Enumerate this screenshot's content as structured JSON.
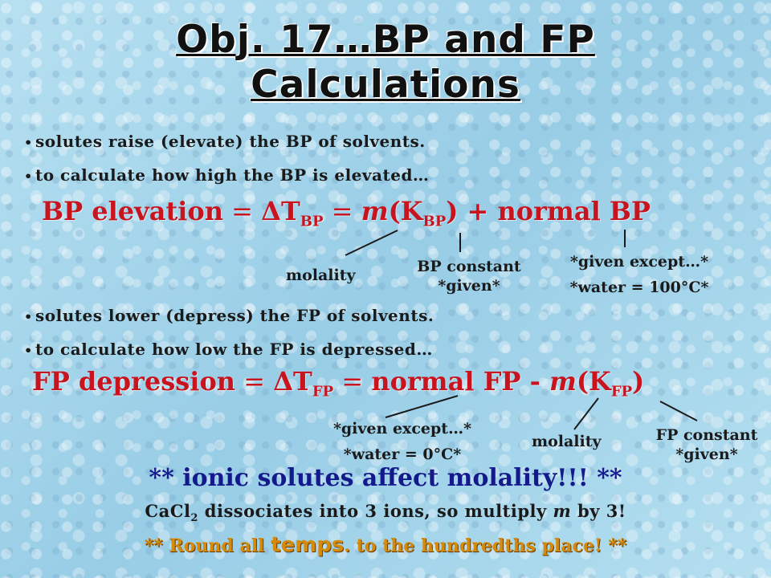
{
  "title": {
    "line1": "Obj. 17…BP and FP",
    "line2": "Calculations"
  },
  "bullets": {
    "b1": "solutes raise (elevate) the BP of solvents.",
    "b2": "to calculate how high the BP is elevated…",
    "b3": "solutes lower (depress) the FP of solvents.",
    "b4": "to calculate how low the FP is depressed…"
  },
  "bp_eq": {
    "label": "BP elevation",
    "eq1": " = ",
    "delta": "ΔT",
    "sub": "BP",
    "eq2": " = ",
    "m": "m",
    "k_open": "(K",
    "k_sub": "BP",
    "k_close": ")",
    "rest": " + normal BP"
  },
  "bp_notes": {
    "molality": "molality",
    "const1": "BP constant",
    "const2": "*given*",
    "given1": "*given except…*",
    "given2": "*water = 100°C*"
  },
  "fp_eq": {
    "label": "FP depression",
    "eq1": " = ",
    "delta": "ΔT",
    "sub": "FP",
    "eq2": " = ",
    "normal": "normal FP - ",
    "m": "m",
    "k_open": "(K",
    "k_sub": "FP",
    "k_close": ")"
  },
  "fp_notes": {
    "given1": "*given except…*",
    "given2": "*water = 0°C*",
    "molality": "molality",
    "const1": "FP constant",
    "const2": "*given*"
  },
  "ionic": "** ionic solutes affect molality!!! **",
  "cacl": {
    "pre": "CaCl",
    "sub": "2",
    "mid": " dissociates into 3 ions, so multiply ",
    "m": "m",
    "post": " by 3!"
  },
  "round": {
    "pre": "** Round all ",
    "big": "temps",
    "post": ". to the hundredths place! **"
  },
  "colors": {
    "red": "#c8141e",
    "blue": "#141a8c",
    "orange": "#d68a0a"
  }
}
